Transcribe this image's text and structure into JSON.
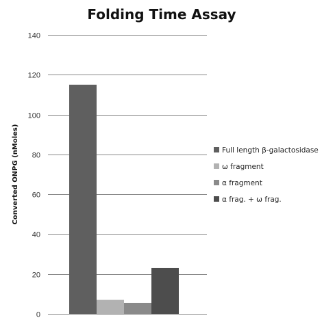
{
  "chart_data": {
    "type": "bar",
    "title": "Folding Time Assay",
    "xlabel": "",
    "ylabel": "Converted ONPG (nMoles)",
    "ylim": [
      0,
      140
    ],
    "yticks": [
      0,
      20,
      40,
      60,
      80,
      100,
      120,
      140
    ],
    "grid": true,
    "legend_position": "right",
    "series": [
      {
        "name": "Full length β-galactosidase",
        "values": [
          115
        ],
        "color": "#5f5f5f"
      },
      {
        "name": "ω fragment",
        "values": [
          7
        ],
        "color": "#b2b2b2"
      },
      {
        "name": "α fragment",
        "values": [
          5.5
        ],
        "color": "#8a8a8a"
      },
      {
        "name": "α frag. + ω frag.",
        "values": [
          23
        ],
        "color": "#4d4d4d"
      }
    ]
  }
}
